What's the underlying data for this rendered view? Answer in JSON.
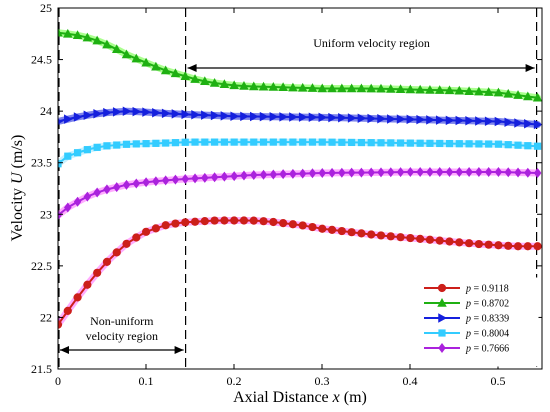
{
  "chart_data": {
    "type": "line",
    "title": "",
    "xlabel": "Axial Distance x (m)",
    "xlabel_parts": {
      "prefix": "Axial Distance ",
      "var": "x",
      "suffix": " (m)"
    },
    "ylabel": "Velocity U (m/s)",
    "ylabel_parts": {
      "prefix": "Velocity ",
      "var": "U",
      "suffix": " (m/s)"
    },
    "xlim": [
      0,
      0.55
    ],
    "ylim": [
      21.5,
      25
    ],
    "xticks": [
      0,
      0.1,
      0.2,
      0.3,
      0.4,
      0.5
    ],
    "xtick_labels": [
      "0",
      "0.1",
      "0.2",
      "0.3",
      "0.4",
      "0.5"
    ],
    "yticks": [
      21.5,
      22,
      22.5,
      23,
      23.5,
      24,
      24.5,
      25
    ],
    "ytick_labels": [
      "21.5",
      "22",
      "22.5",
      "23",
      "23.5",
      "24",
      "24.5",
      "25"
    ],
    "grid": false,
    "legend_position": "bottom-right",
    "x_start": 0,
    "x_end": 0.545,
    "point_count": 50,
    "series": [
      {
        "name": "p = 0.9118",
        "name_var": "p",
        "name_value": "= 0.9118",
        "color": "#cc1f1a",
        "halo": "#ff66ff",
        "marker": "circle",
        "key_x": [
          0,
          0.01,
          0.02,
          0.03,
          0.04,
          0.06,
          0.08,
          0.1,
          0.12,
          0.14,
          0.16,
          0.18,
          0.2,
          0.22,
          0.24,
          0.26,
          0.28,
          0.3,
          0.33,
          0.36,
          0.4,
          0.44,
          0.48,
          0.52,
          0.545
        ],
        "key_y": [
          21.93,
          22.05,
          22.17,
          22.28,
          22.39,
          22.58,
          22.73,
          22.83,
          22.89,
          22.92,
          22.93,
          22.94,
          22.94,
          22.94,
          22.93,
          22.91,
          22.89,
          22.86,
          22.83,
          22.8,
          22.77,
          22.74,
          22.71,
          22.69,
          22.69
        ]
      },
      {
        "name": "p = 0.8702",
        "name_var": "p",
        "name_value": "= 0.8702",
        "color": "#1fb012",
        "halo": "#66ff33",
        "marker": "triangle-up",
        "key_x": [
          0,
          0.02,
          0.04,
          0.06,
          0.08,
          0.1,
          0.12,
          0.14,
          0.16,
          0.18,
          0.2,
          0.22,
          0.26,
          0.3,
          0.35,
          0.4,
          0.45,
          0.5,
          0.545
        ],
        "key_y": [
          24.76,
          24.74,
          24.7,
          24.63,
          24.54,
          24.47,
          24.4,
          24.35,
          24.3,
          24.27,
          24.25,
          24.24,
          24.23,
          24.22,
          24.22,
          24.21,
          24.2,
          24.18,
          24.13
        ]
      },
      {
        "name": "p = 0.8339",
        "name_var": "p",
        "name_value": "= 0.8339",
        "color": "#1520dd",
        "halo": "#1520dd",
        "marker": "triangle-right",
        "key_x": [
          0,
          0.02,
          0.04,
          0.06,
          0.08,
          0.1,
          0.14,
          0.2,
          0.3,
          0.4,
          0.5,
          0.545
        ],
        "key_y": [
          23.9,
          23.94,
          23.97,
          23.99,
          24.0,
          23.99,
          23.97,
          23.95,
          23.94,
          23.92,
          23.9,
          23.87
        ]
      },
      {
        "name": "p = 0.8004",
        "name_var": "p",
        "name_value": "= 0.8004",
        "color": "#33ccff",
        "halo": "#99e6ff",
        "marker": "square",
        "key_x": [
          0,
          0.01,
          0.03,
          0.05,
          0.08,
          0.12,
          0.15,
          0.2,
          0.3,
          0.4,
          0.5,
          0.545
        ],
        "key_y": [
          23.49,
          23.56,
          23.62,
          23.66,
          23.68,
          23.69,
          23.7,
          23.7,
          23.7,
          23.69,
          23.68,
          23.66
        ]
      },
      {
        "name": "p = 0.7666",
        "name_var": "p",
        "name_value": "= 0.7666",
        "color": "#aa22dd",
        "halo": "#ff66ff",
        "marker": "diamond",
        "key_x": [
          0,
          0.01,
          0.03,
          0.05,
          0.08,
          0.11,
          0.14,
          0.18,
          0.22,
          0.3,
          0.4,
          0.5,
          0.545
        ],
        "key_y": [
          22.99,
          23.06,
          23.16,
          23.23,
          23.29,
          23.32,
          23.34,
          23.36,
          23.38,
          23.4,
          23.41,
          23.41,
          23.4
        ]
      }
    ],
    "regions": [
      {
        "label": "Uniform velocity region",
        "x_start": 0.145,
        "x_end": 0.545
      },
      {
        "label": "Non-uniform velocity region",
        "label_lines": [
          "Non-uniform",
          "velocity region"
        ],
        "x_start": 0,
        "x_end": 0.145
      }
    ]
  }
}
